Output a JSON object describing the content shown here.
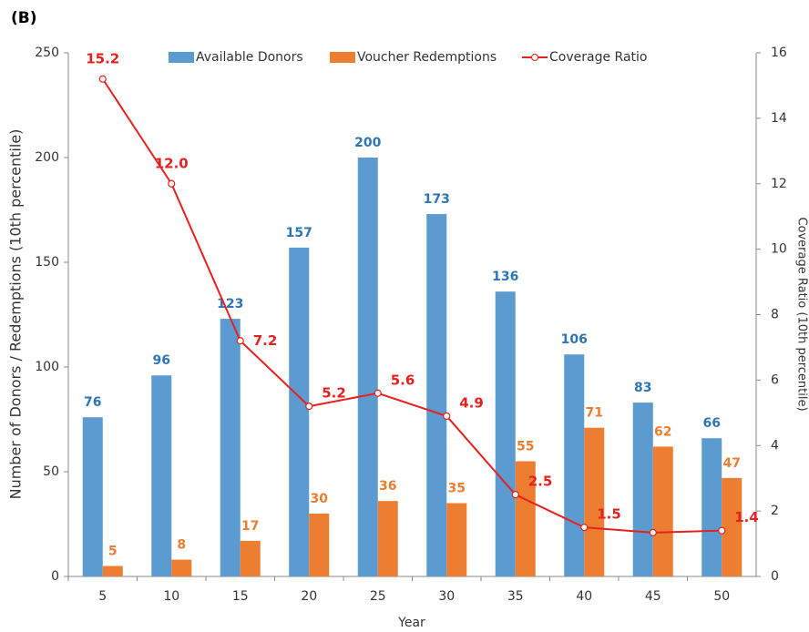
{
  "chart_data": {
    "type": "bar_line",
    "title": "(B)",
    "x_label": "Year",
    "y_label": "Number of Donors / Redemptions (10th percentile)",
    "y2_label": "Coverage Ratio (10th percentile)",
    "categories": [
      "5",
      "10",
      "15",
      "20",
      "25",
      "30",
      "35",
      "40",
      "45",
      "50"
    ],
    "series": [
      {
        "name": "Available Donors",
        "type": "bar",
        "color": "#5b9bd0",
        "label_color": "#2e75b6",
        "values": [
          76,
          96,
          123,
          157,
          200,
          173,
          136,
          106,
          83,
          66
        ]
      },
      {
        "name": "Voucher Redemptions",
        "type": "bar",
        "color": "#ed7d31",
        "label_color": "#ed7d31",
        "values": [
          5,
          8,
          17,
          30,
          36,
          35,
          55,
          71,
          62,
          47
        ]
      },
      {
        "name": "Coverage Ratio",
        "type": "line",
        "axis": "y2",
        "color": "#e8201e",
        "label_color": "#e8201e",
        "values": [
          15.2,
          12.0,
          7.2,
          5.2,
          5.6,
          4.9,
          2.5,
          1.5,
          1.34,
          1.4
        ],
        "value_labels": [
          "15.2",
          "12.0",
          "7.2",
          "5.2",
          "5.6",
          "4.9",
          "2.5",
          "1.5",
          null,
          "1.4"
        ]
      }
    ],
    "ylim": [
      0,
      250
    ],
    "yticks": [
      0,
      50,
      100,
      150,
      200,
      250
    ],
    "y2lim": [
      0,
      16
    ],
    "y2ticks": [
      0,
      2,
      4,
      6,
      8,
      10,
      12,
      14,
      16
    ],
    "grid": false
  }
}
